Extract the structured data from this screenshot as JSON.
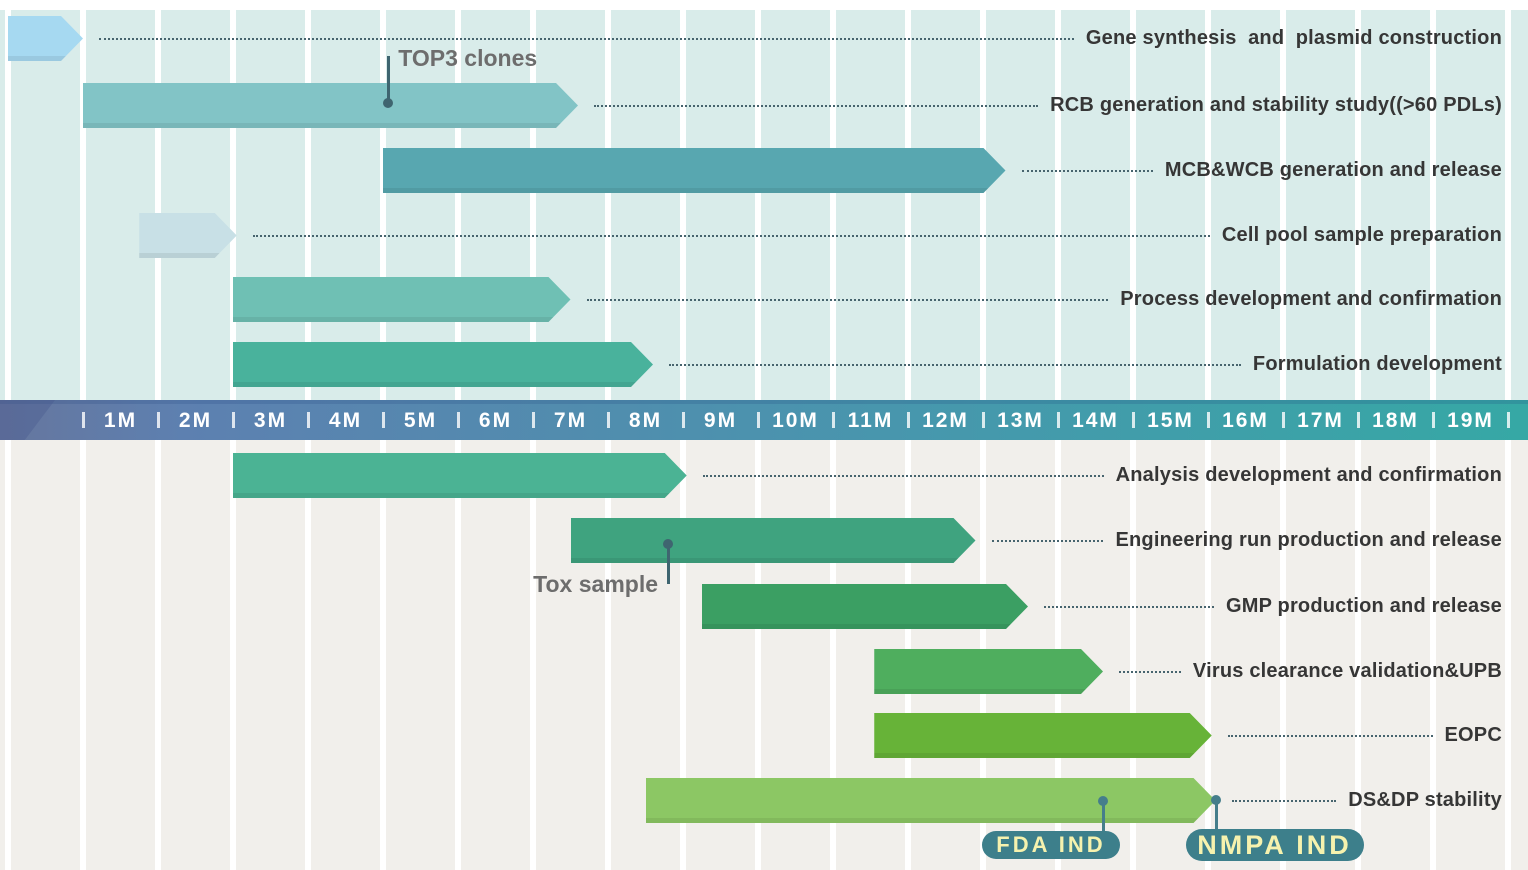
{
  "colors": {
    "upper_bg": "#d9ecea",
    "lower_bg": "#f1efeb",
    "gridline": "#ffffff",
    "axis_gradient_left": "#66769e",
    "axis_gradient_right": "#36a8a5",
    "axis_text": "#ffffff",
    "task_label": "#363636",
    "leader_dots": "#47646e",
    "annotation_text": "#6d6d6d",
    "connector": "#3f6570",
    "milestone_connector": "#457e8b",
    "badge_bg": "#3d7f8b",
    "badge_text": "#f6f2ae"
  },
  "chart_data": {
    "type": "bar",
    "subtype": "gantt-timeline",
    "title": "",
    "axis": {
      "unit": "month",
      "tick_labels": [
        "1M",
        "2M",
        "3M",
        "4M",
        "5M",
        "6M",
        "7M",
        "8M",
        "9M",
        "10M",
        "11M",
        "12M",
        "13M",
        "14M",
        "15M",
        "16M",
        "17M",
        "18M",
        "19M"
      ],
      "range_months": [
        0,
        19
      ]
    },
    "tasks": [
      {
        "label": "Gene synthesis  and  plasmid construction",
        "start_month": -1.0,
        "end_month": 0.0,
        "color": "#a6d9f1",
        "section": "upper",
        "row": 0
      },
      {
        "label": "RCB generation and stability study((>60 PDLs)",
        "start_month": 0.0,
        "end_month": 6.6,
        "color": "#82c4c6",
        "section": "upper",
        "row": 1
      },
      {
        "label": "MCB&WCB generation and release",
        "start_month": 4.0,
        "end_month": 12.3,
        "color": "#58a7b0",
        "section": "upper",
        "row": 2
      },
      {
        "label": "Cell pool sample preparation",
        "start_month": 0.75,
        "end_month": 2.05,
        "color": "#c8e0e6",
        "section": "upper",
        "row": 3
      },
      {
        "label": "Process development and confirmation",
        "start_month": 2.0,
        "end_month": 6.5,
        "color": "#6fc0b4",
        "section": "upper",
        "row": 4
      },
      {
        "label": "Formulation development",
        "start_month": 2.0,
        "end_month": 7.6,
        "color": "#49b29c",
        "section": "upper",
        "row": 5
      },
      {
        "label": "Analysis development and confirmation",
        "start_month": 2.0,
        "end_month": 8.05,
        "color": "#4bb394",
        "section": "lower",
        "row": 0
      },
      {
        "label": "Engineering run production and release",
        "start_month": 6.5,
        "end_month": 11.9,
        "color": "#3fa37f",
        "section": "lower",
        "row": 1
      },
      {
        "label": "GMP production and release",
        "start_month": 8.25,
        "end_month": 12.6,
        "color": "#3b9f63",
        "section": "lower",
        "row": 2
      },
      {
        "label": "Virus clearance validation&UPB",
        "start_month": 10.55,
        "end_month": 13.6,
        "color": "#4fae5e",
        "section": "lower",
        "row": 3
      },
      {
        "label": "EOPC",
        "start_month": 10.55,
        "end_month": 15.05,
        "color": "#67b338",
        "section": "lower",
        "row": 4
      },
      {
        "label": "DS&DP stability",
        "start_month": 7.5,
        "end_month": 15.1,
        "color": "#8cc764",
        "section": "lower",
        "row": 5
      }
    ],
    "annotations": [
      {
        "label": "TOP3 clones",
        "month": 4.07,
        "task": "RCB generation and stability study((>60 PDLs)",
        "position": "above"
      },
      {
        "label": "Tox sample",
        "month": 7.8,
        "task": "Engineering run production and release",
        "position": "below"
      }
    ],
    "milestones": [
      {
        "label": "FDA IND",
        "month": 13.6
      },
      {
        "label": "NMPA IND",
        "month": 15.1
      }
    ]
  }
}
